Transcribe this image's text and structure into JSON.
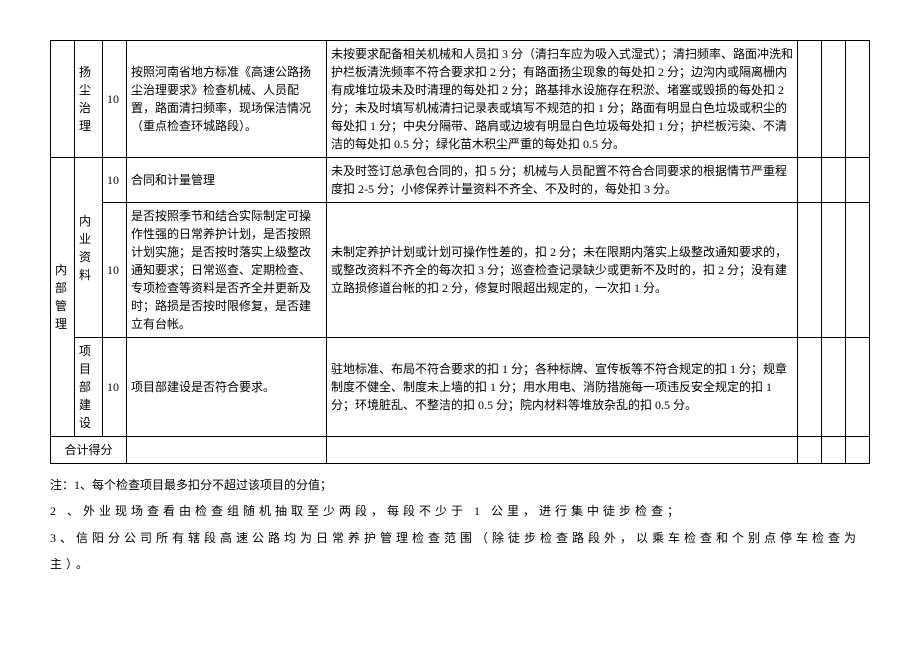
{
  "table": {
    "rows": [
      {
        "cat_rowspan": 0,
        "sub_rowspan": 1,
        "sub": "扬尘治理",
        "val": "10",
        "desc": "按照河南省地方标准《高速公路扬尘治理要求》检查机械、人员配置，路面清扫频率，现场保洁情况（重点检查环城路段）。",
        "crit": "未按要求配备相关机械和人员扣 3 分（清扫车应为吸入式湿式）；清扫频率、路面冲洗和护栏板清洗频率不符合要求扣 2 分；有路面扬尘现象的每处扣 2 分；边沟内或隔离栅内有成堆垃圾未及时清理的每处扣 2 分；路基排水设施存在积淤、堵塞或毁损的每处扣 2 分；未及时填写机械清扫记录表或填写不规范的扣 1 分；路面有明显白色垃圾或积尘的每处扣 1 分；中央分隔带、路肩或边坡有明显白色垃圾每处扣 1 分；护栏板污染、不清洁的每处扣 0.5 分；绿化苗木积尘严重的每处扣 0.5 分。"
      },
      {
        "cat": "内部管理",
        "cat_rowspan": 3,
        "sub_rowspan": 2,
        "sub": "内业资料",
        "val": "10",
        "desc": "合同和计量管理",
        "crit": "未及时签订总承包合同的，扣 5 分；机械与人员配置不符合合同要求的根据情节严重程度扣 2-5 分；小修保养计量资料不齐全、不及时的，每处扣 3 分。"
      },
      {
        "cat_rowspan": 0,
        "sub_rowspan": 0,
        "val": "10",
        "desc": "是否按照季节和结合实际制定可操作性强的日常养护计划，是否按照计划实施；是否按时落实上级整改通知要求；日常巡查、定期检查、专项检查等资料是否齐全并更新及时；路损是否按时限修复，是否建立有台帐。",
        "crit": "未制定养护计划或计划可操作性差的，扣 2 分；未在限期内落实上级整改通知要求的，或整改资料不齐全的每次扣 3 分；巡查检查记录缺少或更新不及时的，扣 2 分；没有建立路损修道台帐的扣 2 分，修复时限超出规定的，一次扣 1 分。"
      },
      {
        "cat_rowspan": 0,
        "sub_rowspan": 1,
        "sub": "项目部建设",
        "val": "10",
        "desc": "项目部建设是否符合要求。",
        "crit": "驻地标准、布局不符合要求的扣 1 分；各种标牌、宣传板等不符合规定的扣 1 分；规章制度不健全、制度未上墙的扣 1 分；用水用电、消防措施每一项违反安全规定的扣 1 分；环境脏乱、不整洁的扣 0.5 分；院内材料等堆放杂乱的扣 0.5 分。"
      }
    ],
    "footer": "合计得分"
  },
  "notes": {
    "line1": "注：1、每个检查项目最多扣分不超过该项目的分值；",
    "line2": "2 、外业现场查看由检查组随机抽取至少两段，每段不少于 1 公里，进行集中徒步检查；",
    "line3": "3、信阳分公司所有辖段高速公路均为日常养护管理检查范围（除徒步检查路段外，以乘车检查和个别点停车检查为主）。"
  }
}
